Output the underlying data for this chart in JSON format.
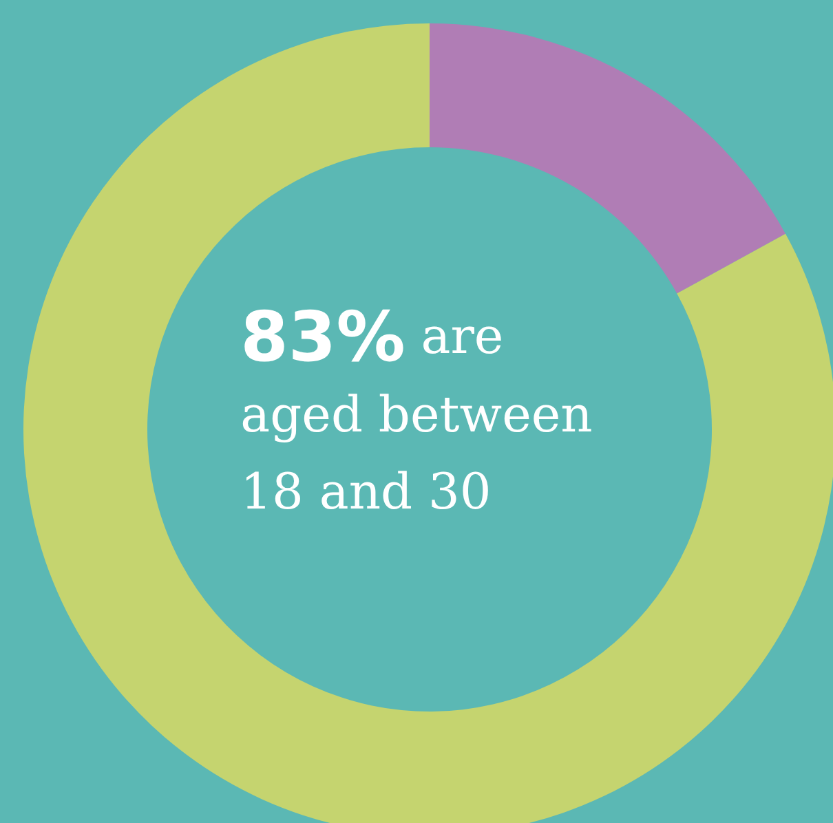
{
  "chart_data": {
    "type": "donut",
    "categories": [
      null,
      null
    ],
    "values": [
      17,
      83
    ],
    "colors": [
      "#b07db5",
      "#c5d46f"
    ],
    "annotations": [
      "83% are\naged between\n18 and 30"
    ]
  }
}
